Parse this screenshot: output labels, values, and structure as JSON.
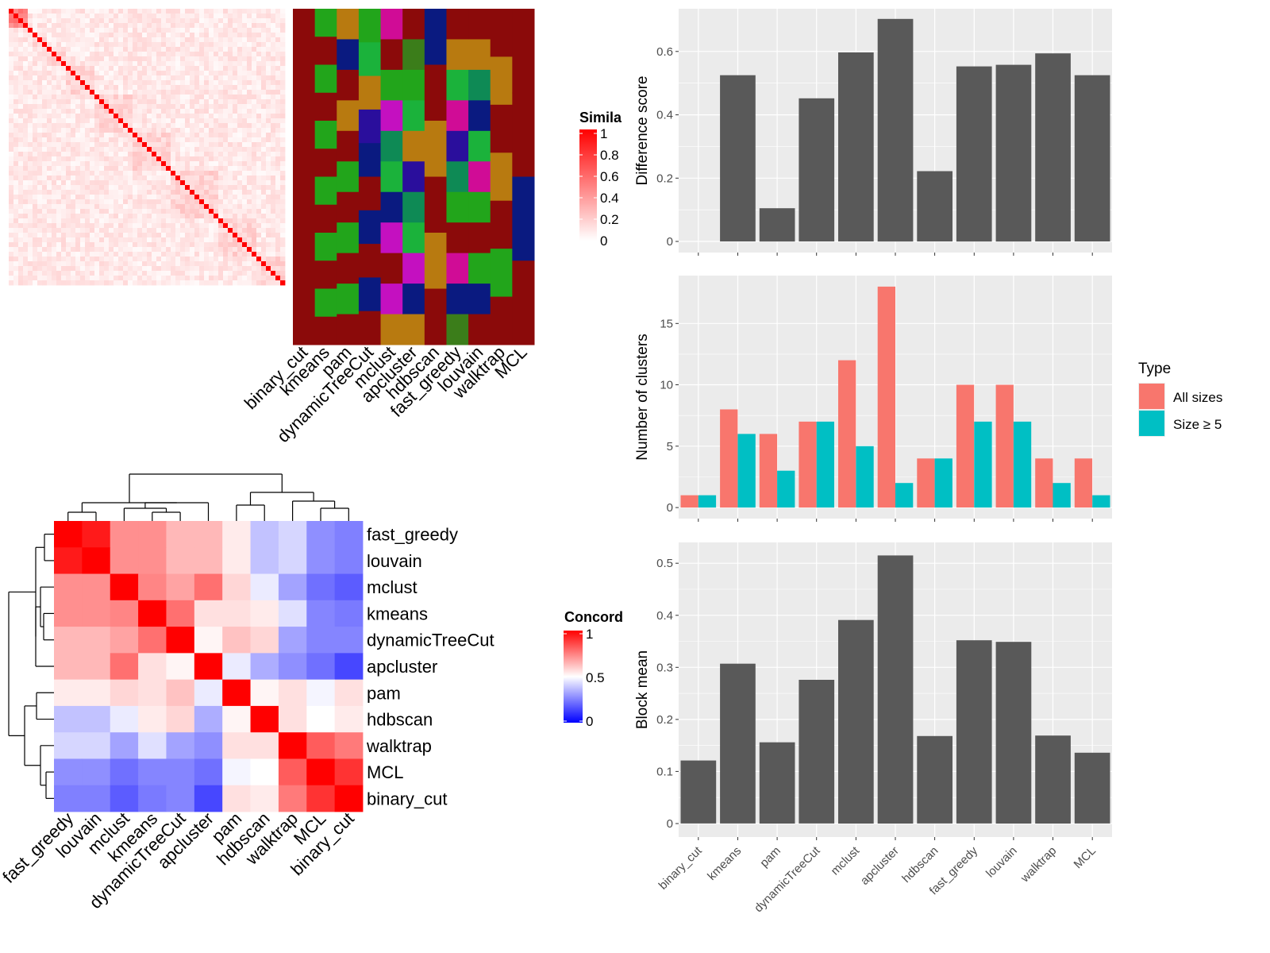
{
  "chart_data": [
    {
      "type": "heatmap",
      "panel": "similarity-heatmap",
      "legend_title": "Similarity",
      "legend_ticks": [
        "1",
        "0.8",
        "0.6",
        "0.4",
        "0.2",
        "0"
      ],
      "color_scale": [
        "#ffffff",
        "#ff0000"
      ],
      "n_terms": 58,
      "methods": [
        "binary_cut",
        "kmeans",
        "pam",
        "dynamicTreeCut",
        "mclust",
        "apcluster",
        "hdbscan",
        "fast_greedy",
        "louvain",
        "walktrap",
        "MCL"
      ],
      "membership_colors": {
        "dark_red": "#8b0a0a",
        "green": "#22a51b",
        "orange": "#b87a10",
        "navy": "#0a1a80",
        "magenta": "#d00c96",
        "purple": "#c410c0",
        "teal": "#0e8a55",
        "dark_green": "#3b7d1a",
        "indigo": "#2a0e9c",
        "bright_green": "#1bb23b"
      }
    },
    {
      "type": "heatmap",
      "panel": "concordance-heatmap",
      "legend_title": "Concordance",
      "legend_ticks": [
        "1",
        "0.5",
        "0"
      ],
      "color_scale": [
        "#0000ff",
        "#ffffff",
        "#ff0000"
      ],
      "rows": [
        "fast_greedy",
        "louvain",
        "mclust",
        "kmeans",
        "dynamicTreeCut",
        "apcluster",
        "pam",
        "hdbscan",
        "walktrap",
        "MCL",
        "binary_cut"
      ],
      "cols": [
        "fast_greedy",
        "louvain",
        "mclust",
        "kmeans",
        "dynamicTreeCut",
        "apcluster",
        "pam",
        "hdbscan",
        "walktrap",
        "MCL",
        "binary_cut"
      ],
      "values": [
        [
          1.0,
          0.95,
          0.72,
          0.72,
          0.64,
          0.64,
          0.54,
          0.38,
          0.42,
          0.28,
          0.25
        ],
        [
          0.95,
          1.0,
          0.72,
          0.72,
          0.64,
          0.64,
          0.54,
          0.38,
          0.42,
          0.28,
          0.25
        ],
        [
          0.72,
          0.72,
          1.0,
          0.74,
          0.68,
          0.78,
          0.58,
          0.46,
          0.32,
          0.22,
          0.18
        ],
        [
          0.72,
          0.72,
          0.74,
          1.0,
          0.78,
          0.56,
          0.56,
          0.54,
          0.44,
          0.26,
          0.24
        ],
        [
          0.64,
          0.64,
          0.68,
          0.78,
          1.0,
          0.52,
          0.62,
          0.58,
          0.32,
          0.26,
          0.26
        ],
        [
          0.64,
          0.64,
          0.78,
          0.56,
          0.52,
          1.0,
          0.46,
          0.34,
          0.28,
          0.22,
          0.14
        ],
        [
          0.54,
          0.54,
          0.58,
          0.56,
          0.62,
          0.46,
          1.0,
          0.52,
          0.56,
          0.48,
          0.56
        ],
        [
          0.38,
          0.38,
          0.46,
          0.54,
          0.58,
          0.34,
          0.52,
          1.0,
          0.56,
          0.5,
          0.54
        ],
        [
          0.42,
          0.42,
          0.32,
          0.44,
          0.32,
          0.28,
          0.56,
          0.56,
          1.0,
          0.82,
          0.76
        ],
        [
          0.28,
          0.28,
          0.22,
          0.26,
          0.26,
          0.22,
          0.48,
          0.5,
          0.82,
          1.0,
          0.9
        ],
        [
          0.25,
          0.25,
          0.18,
          0.24,
          0.26,
          0.14,
          0.56,
          0.54,
          0.76,
          0.9,
          1.0
        ]
      ]
    },
    {
      "type": "bar",
      "panel": "difference-score",
      "categories": [
        "binary_cut",
        "kmeans",
        "pam",
        "dynamicTreeCut",
        "mclust",
        "apcluster",
        "hdbscan",
        "fast_greedy",
        "louvain",
        "walktrap",
        "MCL"
      ],
      "values": [
        0,
        0.525,
        0.105,
        0.452,
        0.597,
        0.703,
        0.222,
        0.553,
        0.558,
        0.594,
        0.525
      ],
      "ylabel": "Difference score",
      "ylim": [
        -0.035,
        0.735
      ],
      "yticks": [
        0,
        0.2,
        0.4,
        0.6
      ],
      "bar_color": "#595959",
      "grid": true
    },
    {
      "type": "bar",
      "panel": "number-of-clusters",
      "categories": [
        "binary_cut",
        "kmeans",
        "pam",
        "dynamicTreeCut",
        "mclust",
        "apcluster",
        "hdbscan",
        "fast_greedy",
        "louvain",
        "walktrap",
        "MCL"
      ],
      "series": [
        {
          "name": "All sizes",
          "values": [
            1,
            8,
            6,
            7,
            12,
            18,
            4,
            10,
            10,
            4,
            4
          ],
          "color": "#f8766d"
        },
        {
          "name": "Size ≥ 5",
          "values": [
            1,
            6,
            3,
            7,
            5,
            2,
            4,
            7,
            7,
            2,
            1
          ],
          "color": "#00bfc4"
        }
      ],
      "ylabel": "Number of clusters",
      "ylim": [
        -0.9,
        18.9
      ],
      "yticks": [
        0,
        5,
        10,
        15
      ],
      "legend_title": "Type",
      "legend_position": "right",
      "grid": true
    },
    {
      "type": "bar",
      "panel": "block-mean",
      "categories": [
        "binary_cut",
        "kmeans",
        "pam",
        "dynamicTreeCut",
        "mclust",
        "apcluster",
        "hdbscan",
        "fast_greedy",
        "louvain",
        "walktrap",
        "MCL"
      ],
      "values": [
        0.121,
        0.307,
        0.156,
        0.276,
        0.391,
        0.515,
        0.168,
        0.352,
        0.349,
        0.169,
        0.136
      ],
      "ylabel": "Block mean",
      "ylim": [
        -0.026,
        0.54
      ],
      "yticks": [
        0,
        0.1,
        0.2,
        0.3,
        0.4,
        0.5
      ],
      "bar_color": "#595959",
      "grid": true
    }
  ]
}
